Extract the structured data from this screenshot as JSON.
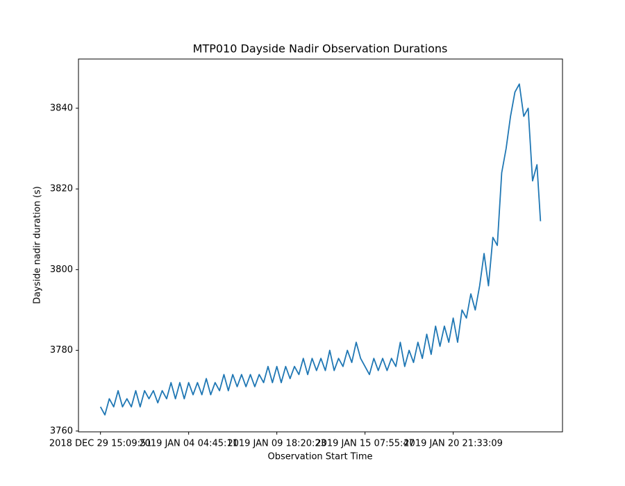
{
  "chart_data": {
    "type": "line",
    "title": "MTP010 Dayside Nadir Observation Durations",
    "x_label": "Observation Start Time",
    "y_label": "Dayside nadir duration (s)",
    "xlim": [
      -24.95,
      523.95
    ],
    "xticks": [
      {
        "value": 0,
        "label": "2018 DEC 29 15:09:51"
      },
      {
        "value": 100,
        "label": "2019 JAN 04 04:45:11"
      },
      {
        "value": 200,
        "label": "2019 JAN 09 18:20:23"
      },
      {
        "value": 300,
        "label": "2019 JAN 15 07:55:47"
      },
      {
        "value": 400,
        "label": "2019 JAN 20 21:33:09"
      }
    ],
    "ylim": [
      3759.8,
      3852.2
    ],
    "yticks": [
      3760,
      3780,
      3800,
      3820,
      3840
    ],
    "grid": false,
    "x": [
      0,
      5,
      10,
      15,
      20,
      25,
      30,
      35,
      40,
      45,
      50,
      55,
      60,
      65,
      70,
      75,
      80,
      85,
      90,
      95,
      100,
      105,
      110,
      115,
      120,
      125,
      130,
      135,
      140,
      145,
      150,
      155,
      160,
      165,
      170,
      175,
      180,
      185,
      190,
      195,
      200,
      205,
      210,
      215,
      220,
      225,
      230,
      235,
      240,
      245,
      250,
      255,
      260,
      265,
      270,
      275,
      280,
      285,
      290,
      295,
      300,
      305,
      310,
      315,
      320,
      325,
      330,
      335,
      340,
      345,
      350,
      355,
      360,
      365,
      370,
      375,
      380,
      385,
      390,
      395,
      400,
      405,
      410,
      415,
      420,
      425,
      430,
      435,
      440,
      445,
      450,
      455,
      460,
      465,
      470,
      475,
      480,
      485,
      490,
      495,
      499
    ],
    "series": [
      {
        "color": "#1f77b4",
        "values": [
          3766,
          3764,
          3768,
          3766,
          3770,
          3766,
          3768,
          3766,
          3770,
          3766,
          3770,
          3768,
          3770,
          3767,
          3770,
          3768,
          3772,
          3768,
          3772,
          3768,
          3772,
          3769,
          3772,
          3769,
          3773,
          3769,
          3772,
          3770,
          3774,
          3770,
          3774,
          3771,
          3774,
          3771,
          3774,
          3771,
          3774,
          3772,
          3776,
          3772,
          3776,
          3772,
          3776,
          3773,
          3776,
          3774,
          3778,
          3774,
          3778,
          3775,
          3778,
          3775,
          3780,
          3775,
          3778,
          3776,
          3780,
          3777,
          3782,
          3778,
          3776,
          3774,
          3778,
          3775,
          3778,
          3775,
          3778,
          3776,
          3782,
          3776,
          3780,
          3777,
          3782,
          3778,
          3784,
          3779,
          3786,
          3781,
          3786,
          3782,
          3788,
          3782,
          3790,
          3788,
          3794,
          3790,
          3796,
          3804,
          3796,
          3808,
          3806,
          3824,
          3830,
          3838,
          3844,
          3846,
          3838,
          3840,
          3822,
          3826,
          3812
        ]
      }
    ]
  }
}
